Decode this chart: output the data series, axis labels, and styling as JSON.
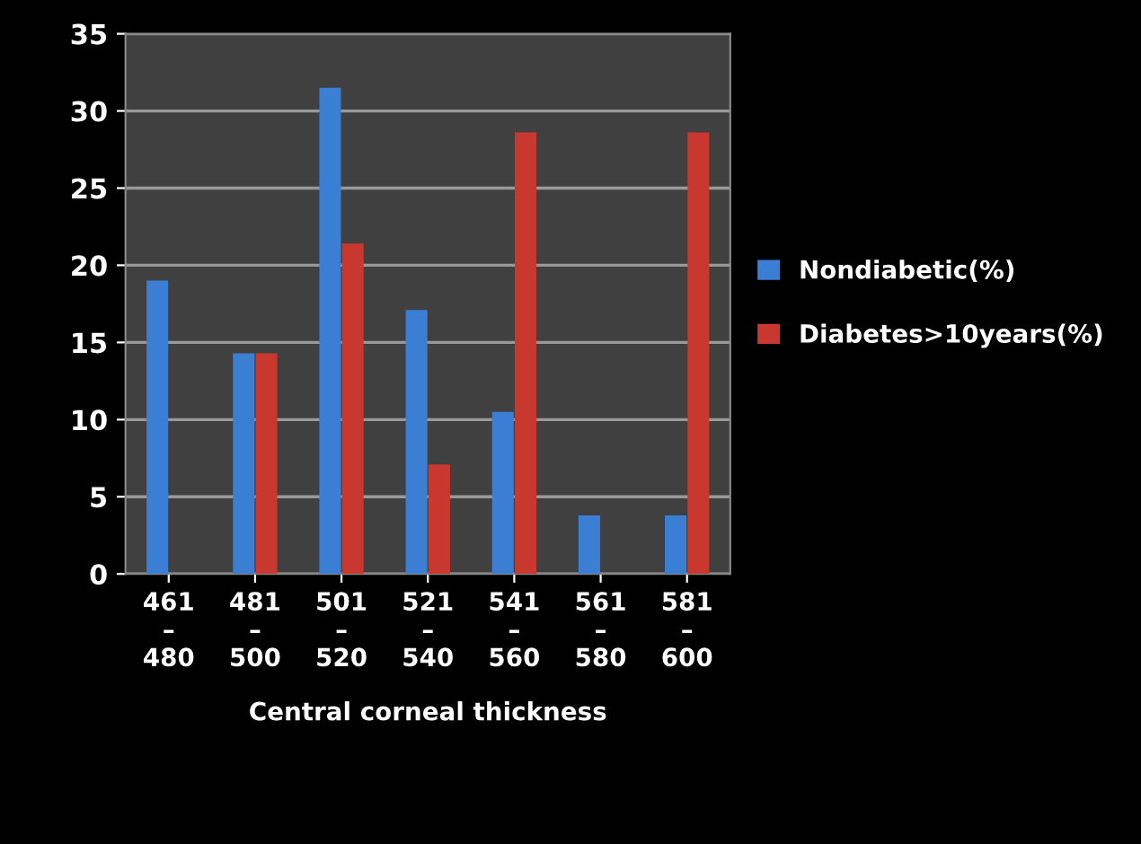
{
  "chart_data": {
    "type": "bar",
    "xlabel": "Central corneal thickness",
    "categories": [
      "461\n–\n480",
      "481\n–\n500",
      "501\n–\n520",
      "521\n–\n540",
      "541\n–\n560",
      "561\n–\n580",
      "581\n–\n600"
    ],
    "series": [
      {
        "name": "Nondiabetic(%)",
        "color": "#3b7fd4",
        "values": [
          19,
          14.3,
          31.5,
          17.1,
          10.5,
          3.8,
          3.8
        ]
      },
      {
        "name": "Diabetes>10years(%)",
        "color": "#c9382f",
        "values": [
          0,
          14.3,
          21.4,
          7.1,
          28.6,
          0,
          28.6
        ]
      }
    ],
    "ylim": [
      0,
      35
    ],
    "yticks": [
      0,
      5,
      10,
      15,
      20,
      25,
      30,
      35
    ],
    "grid": "y",
    "legend": "right"
  }
}
